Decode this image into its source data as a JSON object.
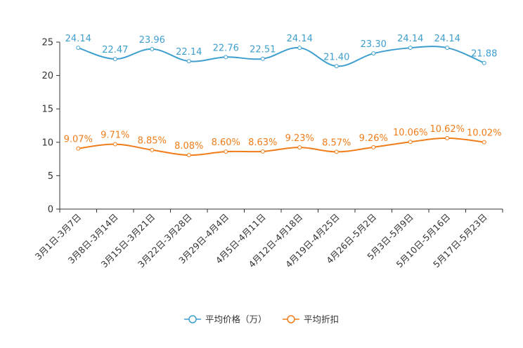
{
  "chart_data": {
    "type": "line",
    "title": "",
    "xlabel": "",
    "ylabel": "",
    "ylim": [
      0,
      25
    ],
    "yticks": [
      0,
      5,
      10,
      15,
      20,
      25
    ],
    "grid": false,
    "legend_position": "bottom-center",
    "categories": [
      "3月1日-3月7日",
      "3月8日-3月14日",
      "3月15日-3月21日",
      "3月22日-3月28日",
      "3月29日-4月4日",
      "4月5日-4月11日",
      "4月12日-4月18日",
      "4月19日-4月25日",
      "4月26日-5月2日",
      "5月3日-5月9日",
      "5月10日-5月16日",
      "5月17日-5月23日"
    ],
    "series": [
      {
        "name": "平均价格（万）",
        "color": "#3e9fce",
        "values": [
          24.14,
          22.47,
          23.96,
          22.14,
          22.76,
          22.51,
          24.14,
          21.4,
          23.3,
          24.14,
          24.14,
          21.88
        ],
        "labels": [
          "24.14",
          "22.47",
          "23.96",
          "22.14",
          "22.76",
          "22.51",
          "24.14",
          "21.40",
          "23.30",
          "24.14",
          "24.14",
          "21.88"
        ]
      },
      {
        "name": "平均折扣",
        "color": "#f07d1a",
        "values": [
          9.07,
          9.71,
          8.85,
          8.08,
          8.6,
          8.63,
          9.23,
          8.57,
          9.26,
          10.06,
          10.62,
          10.02
        ],
        "labels": [
          "9.07%",
          "9.71%",
          "8.85%",
          "8.08%",
          "8.60%",
          "8.63%",
          "9.23%",
          "8.57%",
          "9.26%",
          "10.06%",
          "10.62%",
          "10.02%"
        ]
      }
    ]
  }
}
